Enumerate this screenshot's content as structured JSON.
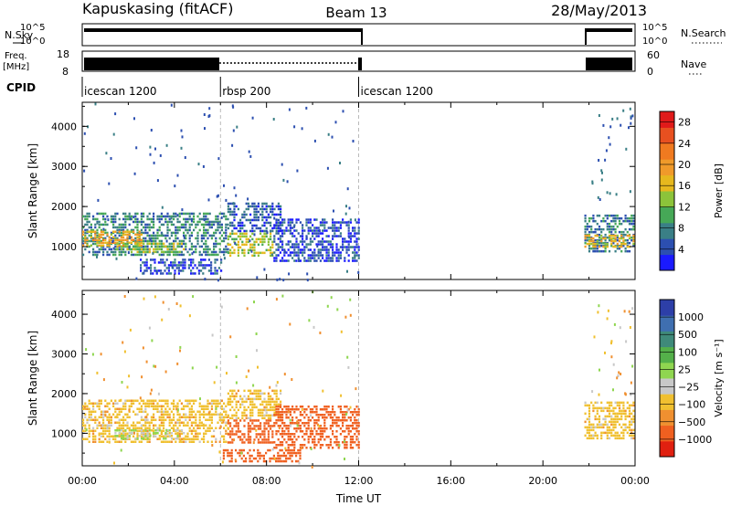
{
  "header": {
    "station": "Kapuskasing (fitACF)",
    "beam": "Beam 13",
    "date": "28/May/2013"
  },
  "strips": {
    "nsky": {
      "label": "N.Sky",
      "ticks": [
        "10^5",
        "10^0"
      ]
    },
    "nsearch": {
      "label": "N.Search",
      "ticks": [
        "10^5",
        "10^0"
      ]
    },
    "freq": {
      "label_line1": "Freq.",
      "label_line2": "[MHz]",
      "ticks": [
        "18",
        "8"
      ]
    },
    "nave": {
      "label": "Nave",
      "ticks": [
        "60",
        "0"
      ]
    },
    "cpid": {
      "label": "CPID",
      "segments": [
        {
          "name": "icescan 1200",
          "start_h": 0,
          "end_h": 6
        },
        {
          "name": "rbsp 200",
          "start_h": 6,
          "end_h": 12
        },
        {
          "name": "icescan 1200",
          "start_h": 12,
          "end_h": 24
        }
      ]
    }
  },
  "chart_data": [
    {
      "type": "heatmap",
      "panel": "power",
      "xlabel": "",
      "ylabel": "Slant Range [km]",
      "xlim": [
        0,
        24
      ],
      "ylim": [
        180,
        4600
      ],
      "yticks": [
        "1000",
        "2000",
        "3000",
        "4000"
      ],
      "ytick_values": [
        1000,
        2000,
        3000,
        4000
      ],
      "colorbar": {
        "label": "Power [dB]",
        "tick_labels": [
          "4",
          "8",
          "12",
          "16",
          "20",
          "24",
          "28"
        ],
        "tick_values": [
          4,
          8,
          12,
          16,
          20,
          24,
          28
        ],
        "range": [
          0,
          30
        ],
        "colors": [
          "#1a1aff",
          "#2c4fb0",
          "#3a7f86",
          "#46a857",
          "#8cc33a",
          "#e6b81e",
          "#f09a2a",
          "#f07a20",
          "#e85020",
          "#e01a1a"
        ]
      },
      "regions": [
        {
          "t": [
            0,
            6.3
          ],
          "r": [
            800,
            1850
          ],
          "level": 8
        },
        {
          "t": [
            0,
            2.6
          ],
          "r": [
            1050,
            1400
          ],
          "level": 18
        },
        {
          "t": [
            1.4,
            4.4
          ],
          "r": [
            850,
            1100
          ],
          "level": 13
        },
        {
          "t": [
            6.3,
            8.3
          ],
          "r": [
            750,
            1350
          ],
          "level": 14
        },
        {
          "t": [
            6.3,
            8.6
          ],
          "r": [
            1400,
            2100
          ],
          "level": 5
        },
        {
          "t": [
            8.3,
            12
          ],
          "r": [
            650,
            1700
          ],
          "level": 4
        },
        {
          "t": [
            21.8,
            23.9
          ],
          "r": [
            900,
            1800
          ],
          "level": 7
        },
        {
          "t": [
            21.8,
            23.9
          ],
          "r": [
            1000,
            1300
          ],
          "level": 17
        },
        {
          "t": [
            2.5,
            6
          ],
          "r": [
            350,
            700
          ],
          "level": 4
        }
      ]
    },
    {
      "type": "heatmap",
      "panel": "velocity",
      "xlabel": "Time UT",
      "ylabel": "Slant Range [km]",
      "xlim": [
        0,
        24
      ],
      "ylim": [
        180,
        4600
      ],
      "xticks": [
        "00:00",
        "04:00",
        "08:00",
        "12:00",
        "16:00",
        "20:00",
        "00:00"
      ],
      "xtick_values": [
        0,
        4,
        8,
        12,
        16,
        20,
        24
      ],
      "yticks": [
        "1000",
        "2000",
        "3000",
        "4000"
      ],
      "ytick_values": [
        1000,
        2000,
        3000,
        4000
      ],
      "colorbar": {
        "label": "Velocity [m s⁻¹]",
        "tick_labels": [
          "1000",
          "500",
          "100",
          "25",
          "−25",
          "−100",
          "−500",
          "−1000"
        ],
        "tick_values": [
          1000,
          500,
          100,
          25,
          -25,
          -100,
          -500,
          -1000
        ],
        "colors": [
          "#2d3fa8",
          "#3f6fb0",
          "#3f8a7a",
          "#54b04a",
          "#8fd650",
          "#c8c8c8",
          "#f0c030",
          "#f09030",
          "#f06020",
          "#e02010"
        ]
      },
      "regions": [
        {
          "t": [
            0,
            6.3
          ],
          "r": [
            800,
            1850
          ],
          "level": 0
        },
        {
          "t": [
            1.4,
            4.4
          ],
          "r": [
            850,
            1100
          ],
          "level": 40
        },
        {
          "t": [
            6.3,
            8.3
          ],
          "r": [
            750,
            1350
          ],
          "level": -200
        },
        {
          "t": [
            6.3,
            8.6
          ],
          "r": [
            1400,
            2100
          ],
          "level": 0
        },
        {
          "t": [
            8.3,
            12
          ],
          "r": [
            650,
            1700
          ],
          "level": -200
        },
        {
          "t": [
            21.8,
            23.9
          ],
          "r": [
            900,
            1800
          ],
          "level": 0
        },
        {
          "t": [
            6.1,
            9.5
          ],
          "r": [
            300,
            600
          ],
          "level": -200
        }
      ]
    }
  ]
}
